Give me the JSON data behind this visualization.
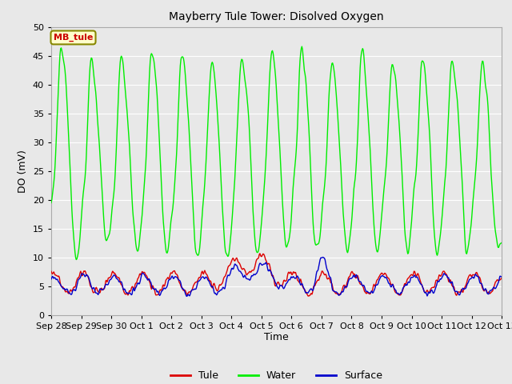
{
  "title": "Mayberry Tule Tower: Disolved Oxygen",
  "ylabel": "DO (mV)",
  "xlabel": "Time",
  "annotation": "MB_tule",
  "annotation_color": "#cc0000",
  "annotation_bg": "#ffffcc",
  "annotation_border": "#888800",
  "ylim": [
    0,
    50
  ],
  "xtick_labels": [
    "Sep 28",
    "Sep 29",
    "Sep 30",
    "Oct 1",
    "Oct 2",
    "Oct 3",
    "Oct 4",
    "Oct 5",
    "Oct 6",
    "Oct 7",
    "Oct 8",
    "Oct 9",
    "Oct 10",
    "Oct 11",
    "Oct 12",
    "Oct 13"
  ],
  "bg_color": "#e8e8e8",
  "grid_color": "#ffffff",
  "tule_color": "#dd0000",
  "water_color": "#00ee00",
  "surface_color": "#0000cc",
  "legend_tule": "Tule",
  "legend_water": "Water",
  "legend_surface": "Surface"
}
